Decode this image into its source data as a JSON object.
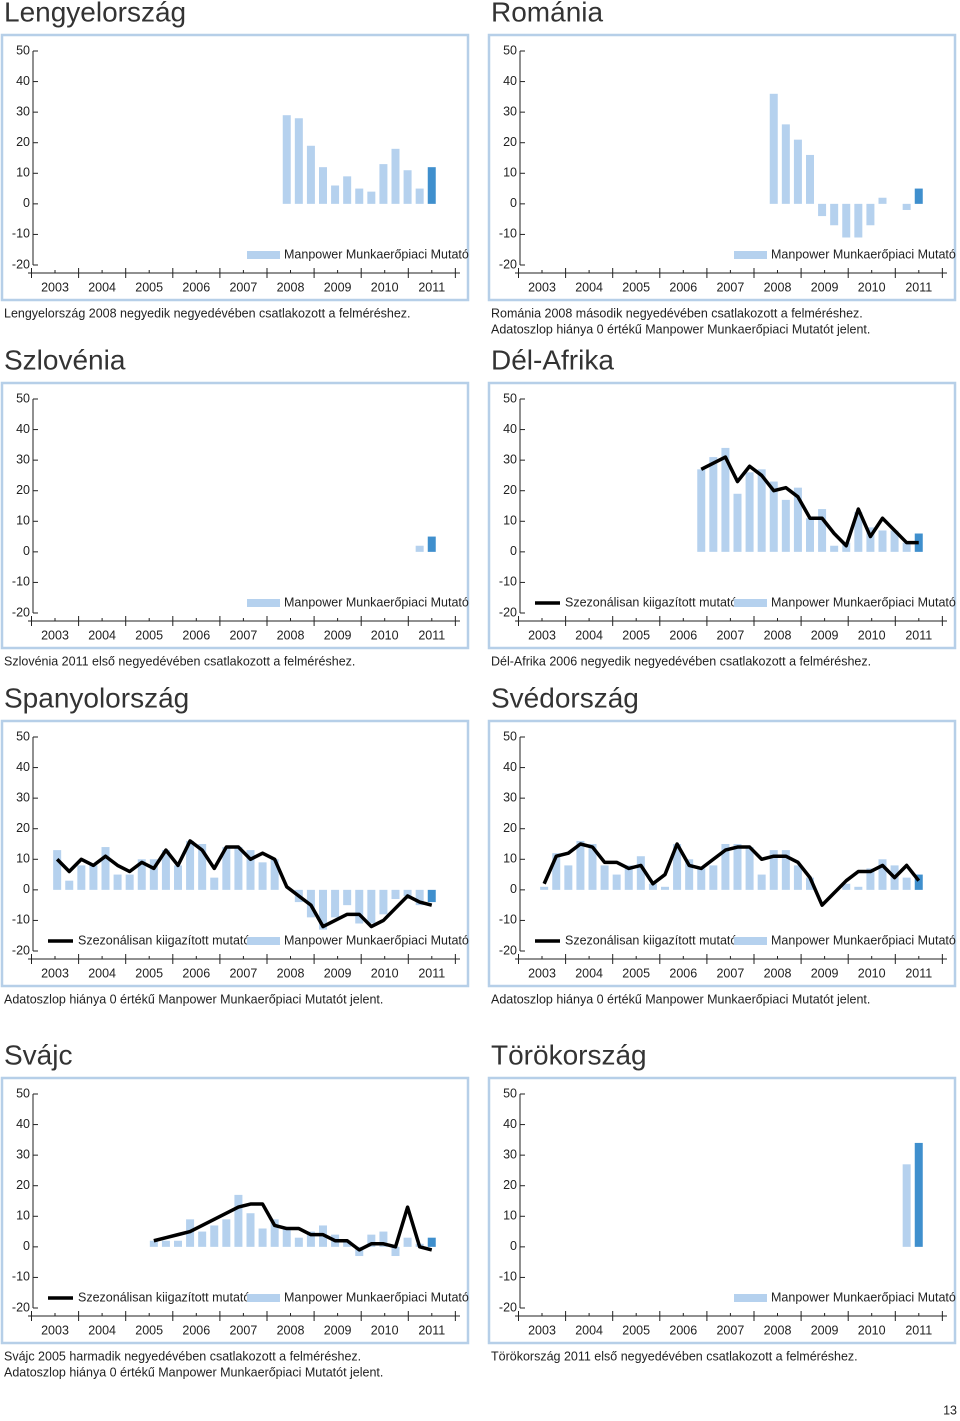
{
  "page_number": 13,
  "chart_data": [
    {
      "type": "bar",
      "title": "Lengyelország",
      "ylim": [
        -20,
        50
      ],
      "yticks": [
        -20,
        -10,
        0,
        10,
        20,
        30,
        40,
        50
      ],
      "xlim": [
        2003.5,
        2012.5
      ],
      "xticks": [
        2003,
        2004,
        2005,
        2006,
        2007,
        2008,
        2009,
        2010,
        2011
      ],
      "x": [
        2008.75,
        2009,
        2009.25,
        2009.5,
        2009.75,
        2010,
        2010.25,
        2010.5,
        2010.75,
        2011,
        2011.25,
        2011.5,
        2011.75
      ],
      "series": [
        {
          "name": "Manpower Munkaerőpiaci Mutató",
          "type": "bar",
          "color": "#b5d1ee",
          "last_color": "#3f8fcd",
          "values": [
            29,
            28,
            19,
            12,
            6,
            9,
            5,
            4,
            13,
            18,
            11,
            5,
            12
          ]
        }
      ],
      "notes": [
        "Lengyelország 2008 negyedik negyedévében csatlakozott a felméréshez."
      ]
    },
    {
      "type": "bar",
      "title": "Románia",
      "ylim": [
        -20,
        50
      ],
      "yticks": [
        -20,
        -10,
        0,
        10,
        20,
        30,
        40,
        50
      ],
      "xlim": [
        2003.5,
        2012.5
      ],
      "xticks": [
        2003,
        2004,
        2005,
        2006,
        2007,
        2008,
        2009,
        2010,
        2011
      ],
      "x": [
        2008.75,
        2009,
        2009.25,
        2009.5,
        2009.75,
        2010,
        2010.25,
        2010.5,
        2010.75,
        2011,
        2011.25,
        2011.5,
        2011.75
      ],
      "series": [
        {
          "name": "Manpower Munkaerőpiaci Mutató",
          "type": "bar",
          "color": "#b5d1ee",
          "last_color": "#3f8fcd",
          "values": [
            36,
            26,
            21,
            16,
            -4,
            -7,
            -11,
            -11,
            -7,
            2,
            0,
            -2,
            5
          ]
        }
      ],
      "notes": [
        "Románia 2008 második negyedévében csatlakozott a felméréshez.",
        "Adatoszlop hiánya 0 értékű Manpower Munkaerőpiaci Mutatót jelent."
      ]
    },
    {
      "type": "bar",
      "title": "Szlovénia",
      "ylim": [
        -20,
        50
      ],
      "yticks": [
        -20,
        -10,
        0,
        10,
        20,
        30,
        40,
        50
      ],
      "xlim": [
        2003.5,
        2012.5
      ],
      "xticks": [
        2003,
        2004,
        2005,
        2006,
        2007,
        2008,
        2009,
        2010,
        2011
      ],
      "x": [
        2011.5,
        2011.75
      ],
      "series": [
        {
          "name": "Manpower Munkaerőpiaci Mutató",
          "type": "bar",
          "color": "#b5d1ee",
          "last_color": "#3f8fcd",
          "values": [
            2,
            5
          ]
        }
      ],
      "notes": [
        "Szlovénia 2011 első negyedévében csatlakozott a felméréshez."
      ]
    },
    {
      "type": "bar",
      "title": "Dél-Afrika",
      "ylim": [
        -20,
        50
      ],
      "yticks": [
        -20,
        -10,
        0,
        10,
        20,
        30,
        40,
        50
      ],
      "xlim": [
        2003.5,
        2012.5
      ],
      "xticks": [
        2003,
        2004,
        2005,
        2006,
        2007,
        2008,
        2009,
        2010,
        2011
      ],
      "x": [
        2007.25,
        2007.5,
        2007.75,
        2008,
        2008.25,
        2008.5,
        2008.75,
        2009,
        2009.25,
        2009.5,
        2009.75,
        2010,
        2010.25,
        2010.5,
        2010.75,
        2011,
        2011.25,
        2011.5,
        2011.75
      ],
      "series": [
        {
          "name": "Szezonálisan kiigazított mutató",
          "type": "line",
          "color": "#000000",
          "values": [
            27,
            29,
            31,
            23,
            28,
            25,
            20,
            21,
            18,
            11,
            11,
            6,
            2,
            14,
            5,
            11,
            7,
            3,
            3
          ]
        },
        {
          "name": "Manpower Munkaerőpiaci Mutató",
          "type": "bar",
          "color": "#b5d1ee",
          "last_color": "#3f8fcd",
          "values": [
            27,
            31,
            34,
            19,
            26,
            27,
            23,
            17,
            21,
            11,
            14,
            2,
            3,
            13,
            8,
            7,
            7,
            3,
            6
          ]
        }
      ],
      "notes": [
        "Dél-Afrika 2006 negyedik negyedévében csatlakozott a felméréshez."
      ]
    },
    {
      "type": "bar",
      "title": "Spanyolország",
      "ylim": [
        -20,
        50
      ],
      "yticks": [
        -20,
        -10,
        0,
        10,
        20,
        30,
        40,
        50
      ],
      "xlim": [
        2003.5,
        2012.5
      ],
      "xticks": [
        2003,
        2004,
        2005,
        2006,
        2007,
        2008,
        2009,
        2010,
        2011
      ],
      "x": [
        2004,
        2004.25,
        2004.5,
        2004.75,
        2005,
        2005.25,
        2005.5,
        2005.75,
        2006,
        2006.25,
        2006.5,
        2006.75,
        2007,
        2007.25,
        2007.5,
        2007.75,
        2008,
        2008.25,
        2008.5,
        2008.75,
        2009,
        2009.25,
        2009.5,
        2009.75,
        2010,
        2010.25,
        2010.5,
        2010.75,
        2011,
        2011.25,
        2011.5,
        2011.75
      ],
      "series": [
        {
          "name": "Szezonálisan kiigazított mutató",
          "type": "line",
          "color": "#000000",
          "values": [
            10,
            6,
            10,
            8,
            11,
            8,
            6,
            9,
            7,
            13,
            8,
            16,
            13,
            7,
            14,
            14,
            10,
            12,
            10,
            1,
            -2,
            -5,
            -12,
            -10,
            -8,
            -8,
            -12,
            -10,
            -6,
            -2,
            -4,
            -5
          ]
        },
        {
          "name": "Manpower Munkaerőpiaci Mutató",
          "type": "bar",
          "color": "#b5d1ee",
          "last_color": "#3f8fcd",
          "values": [
            13,
            3,
            8,
            8,
            14,
            5,
            5,
            10,
            10,
            13,
            8,
            16,
            15,
            4,
            14,
            14,
            13,
            9,
            10,
            0,
            -4,
            -9,
            -13,
            -9,
            -5,
            -11,
            -11,
            -8,
            -3,
            -2,
            -5,
            -4
          ]
        }
      ],
      "notes": [
        "Adatoszlop hiánya 0 értékű Manpower Munkaerőpiaci Mutatót jelent."
      ]
    },
    {
      "type": "bar",
      "title": "Svédország",
      "ylim": [
        -20,
        50
      ],
      "yticks": [
        -20,
        -10,
        0,
        10,
        20,
        30,
        40,
        50
      ],
      "xlim": [
        2003.5,
        2012.5
      ],
      "xticks": [
        2003,
        2004,
        2005,
        2006,
        2007,
        2008,
        2009,
        2010,
        2011
      ],
      "x": [
        2004,
        2004.25,
        2004.5,
        2004.75,
        2005,
        2005.25,
        2005.5,
        2005.75,
        2006,
        2006.25,
        2006.5,
        2006.75,
        2007,
        2007.25,
        2007.5,
        2007.75,
        2008,
        2008.25,
        2008.5,
        2008.75,
        2009,
        2009.25,
        2009.5,
        2009.75,
        2010,
        2010.25,
        2010.5,
        2010.75,
        2011,
        2011.25,
        2011.5,
        2011.75
      ],
      "series": [
        {
          "name": "Szezonálisan kiigazított mutató",
          "type": "line",
          "color": "#000000",
          "values": [
            2,
            11,
            12,
            15,
            14,
            9,
            9,
            7,
            8,
            2,
            5,
            15,
            8,
            7,
            10,
            13,
            14,
            14,
            10,
            11,
            11,
            9,
            4,
            -5,
            -1,
            3,
            6,
            6,
            8,
            4,
            8,
            3
          ]
        },
        {
          "name": "Manpower Munkaerőpiaci Mutató",
          "type": "bar",
          "color": "#b5d1ee",
          "last_color": "#3f8fcd",
          "values": [
            1,
            12,
            8,
            16,
            15,
            8,
            5,
            8,
            11,
            2,
            1,
            15,
            10,
            7,
            8,
            15,
            15,
            14,
            5,
            13,
            13,
            8,
            4,
            0,
            0,
            2,
            1,
            7,
            10,
            8,
            4,
            5
          ]
        }
      ],
      "notes": [
        "Adatoszlop hiánya 0 értékű Manpower Munkaerőpiaci Mutatót jelent."
      ]
    },
    {
      "type": "bar",
      "title": "Svájc",
      "ylim": [
        -20,
        50
      ],
      "yticks": [
        -20,
        -10,
        0,
        10,
        20,
        30,
        40,
        50
      ],
      "xlim": [
        2003.5,
        2012.5
      ],
      "xticks": [
        2003,
        2004,
        2005,
        2006,
        2007,
        2008,
        2009,
        2010,
        2011
      ],
      "x": [
        2006,
        2006.25,
        2006.5,
        2006.75,
        2007,
        2007.25,
        2007.5,
        2007.75,
        2008,
        2008.25,
        2008.5,
        2008.75,
        2009,
        2009.25,
        2009.5,
        2009.75,
        2010,
        2010.25,
        2010.5,
        2010.75,
        2011,
        2011.25,
        2011.5,
        2011.75
      ],
      "series": [
        {
          "name": "Szezonálisan kiigazított mutató",
          "type": "line",
          "color": "#000000",
          "values": [
            2,
            3,
            4,
            5,
            7,
            9,
            11,
            13,
            14,
            14,
            7,
            6,
            6,
            4,
            4,
            2,
            2,
            -1,
            1,
            1,
            0,
            13,
            0,
            -1
          ]
        },
        {
          "name": "Manpower Munkaerőpiaci Mutató",
          "type": "bar",
          "color": "#b5d1ee",
          "last_color": "#3f8fcd",
          "values": [
            2,
            2,
            2,
            9,
            5,
            7,
            9,
            17,
            11,
            6,
            9,
            6,
            3,
            5,
            7,
            4,
            2,
            -3,
            4,
            5,
            -3,
            3,
            1,
            3
          ]
        }
      ],
      "notes": [
        "Svájc 2005 harmadik negyedévében csatlakozott a felméréshez.",
        "Adatoszlop hiánya 0 értékű Manpower Munkaerőpiaci Mutatót jelent."
      ]
    },
    {
      "type": "bar",
      "title": "Törökország",
      "ylim": [
        -20,
        50
      ],
      "yticks": [
        -20,
        -10,
        0,
        10,
        20,
        30,
        40,
        50
      ],
      "xlim": [
        2003.5,
        2012.5
      ],
      "xticks": [
        2003,
        2004,
        2005,
        2006,
        2007,
        2008,
        2009,
        2010,
        2011
      ],
      "x": [
        2011.5,
        2011.75
      ],
      "series": [
        {
          "name": "Manpower Munkaerőpiaci Mutató",
          "type": "bar",
          "color": "#b5d1ee",
          "last_color": "#3f8fcd",
          "values": [
            27,
            34
          ]
        }
      ],
      "notes": [
        "Törökország 2011 első negyedévében csatlakozott a felméréshez."
      ]
    }
  ]
}
